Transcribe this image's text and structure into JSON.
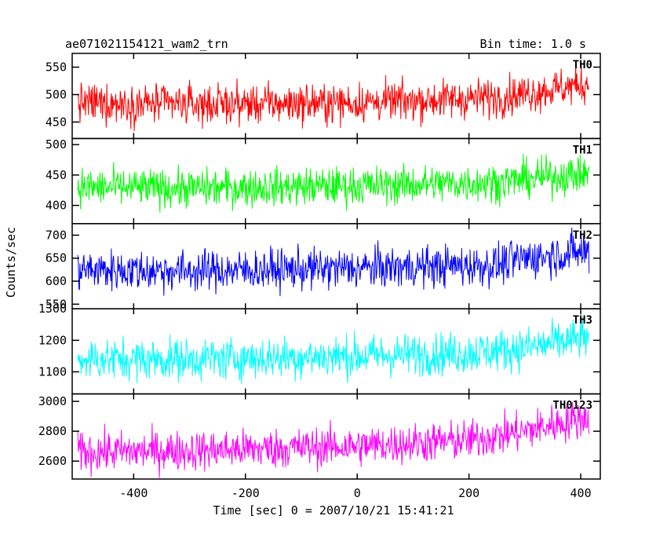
{
  "header": {
    "title": "ae071021154121_wam2_trn",
    "bin_time": "Bin time: 1.0 s"
  },
  "chart_data": {
    "type": "line",
    "xlabel": "Time [sec] 0 = 2007/10/21 15:41:21",
    "ylabel": "Counts/sec",
    "xlim": [
      -510,
      435
    ],
    "x_range_data": [
      -500,
      415
    ],
    "x_ticks": [
      -400,
      -200,
      0,
      200,
      400
    ],
    "bin_time_s": 1.0,
    "panels": [
      {
        "name": "TH0",
        "color": "#ff0000",
        "ylim": [
          420,
          575
        ],
        "y_ticks": [
          450,
          500,
          550
        ],
        "trend": [
          [
            -500,
            485
          ],
          [
            -300,
            482
          ],
          [
            0,
            485
          ],
          [
            250,
            495
          ],
          [
            320,
            505
          ],
          [
            415,
            520
          ]
        ],
        "noise_amplitude": 32
      },
      {
        "name": "TH1",
        "color": "#00ff00",
        "ylim": [
          370,
          510
        ],
        "y_ticks": [
          400,
          450,
          500
        ],
        "trend": [
          [
            -500,
            430
          ],
          [
            -300,
            428
          ],
          [
            0,
            432
          ],
          [
            250,
            438
          ],
          [
            320,
            445
          ],
          [
            415,
            452
          ]
        ],
        "noise_amplitude": 28
      },
      {
        "name": "TH2",
        "color": "#0000ff",
        "ylim": [
          540,
          725
        ],
        "y_ticks": [
          550,
          600,
          650,
          700
        ],
        "trend": [
          [
            -500,
            625
          ],
          [
            -300,
            622
          ],
          [
            0,
            628
          ],
          [
            250,
            635
          ],
          [
            300,
            650
          ],
          [
            415,
            665
          ]
        ],
        "noise_amplitude": 40
      },
      {
        "name": "TH3",
        "color": "#00ffff",
        "ylim": [
          1030,
          1300
        ],
        "y_ticks": [
          1100,
          1200,
          1300
        ],
        "trend": [
          [
            -500,
            1140
          ],
          [
            -300,
            1140
          ],
          [
            0,
            1150
          ],
          [
            200,
            1160
          ],
          [
            300,
            1175
          ],
          [
            415,
            1210
          ]
        ],
        "noise_amplitude": 60
      },
      {
        "name": "TH0123",
        "color": "#ff00ff",
        "ylim": [
          2480,
          3050
        ],
        "y_ticks": [
          2600,
          2800,
          3000
        ],
        "trend": [
          [
            -500,
            2660
          ],
          [
            -300,
            2670
          ],
          [
            0,
            2700
          ],
          [
            200,
            2740
          ],
          [
            300,
            2800
          ],
          [
            415,
            2900
          ]
        ],
        "noise_amplitude": 120
      }
    ]
  }
}
